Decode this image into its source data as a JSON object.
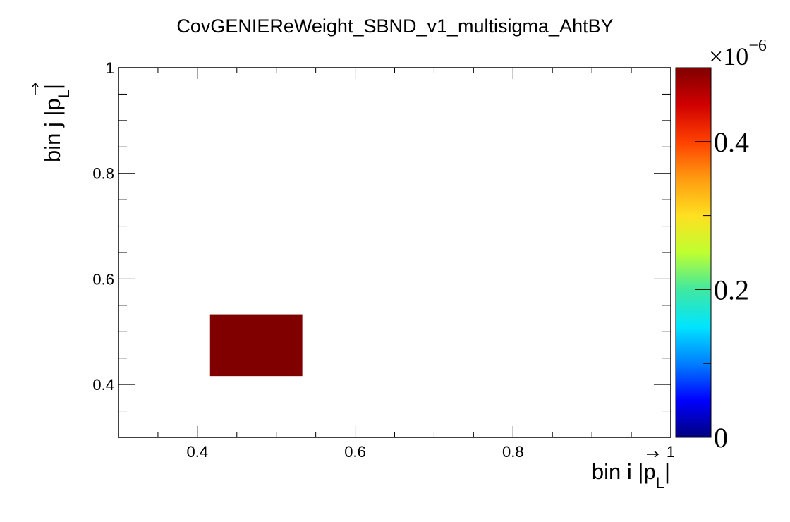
{
  "chart_data": {
    "type": "heatmap",
    "title": "CovGENIEReWeight_SBND_v1_multisigma_AhtBY",
    "xlabel": {
      "prefix": "bin i |",
      "vec": "p",
      "sub": "L",
      "suffix": "|"
    },
    "ylabel": {
      "prefix": "bin j |",
      "vec": "p",
      "sub": "L",
      "suffix": "|"
    },
    "xlim": [
      0.3,
      1.0
    ],
    "ylim": [
      0.3,
      1.0
    ],
    "x_ticks": [
      {
        "value": 0.4,
        "label": "0.4"
      },
      {
        "value": 0.6,
        "label": "0.6"
      },
      {
        "value": 0.8,
        "label": "0.8"
      },
      {
        "value": 1.0,
        "label": "1"
      }
    ],
    "y_ticks": [
      {
        "value": 0.4,
        "label": "0.4"
      },
      {
        "value": 0.6,
        "label": "0.6"
      },
      {
        "value": 0.8,
        "label": "0.8"
      },
      {
        "value": 1.0,
        "label": "1"
      }
    ],
    "x_minor_step": 0.05,
    "y_minor_step": 0.05,
    "cells": [
      {
        "x0": 0.416,
        "x1": 0.533,
        "y0": 0.416,
        "y1": 0.533,
        "value": 5e-07
      }
    ],
    "colorbar": {
      "zlim": [
        0,
        5e-07
      ],
      "exponent_label": {
        "base": "×10",
        "power": "−6"
      },
      "ticks": [
        {
          "value": 0,
          "label": "0"
        },
        {
          "value": 2e-07,
          "label": "0.2"
        },
        {
          "value": 4e-07,
          "label": "0.4"
        }
      ],
      "minor_step": 1e-07,
      "palette": [
        "#00007f",
        "#0000ff",
        "#007fff",
        "#00e5ff",
        "#40e8a0",
        "#bfff30",
        "#ffe020",
        "#ff9b10",
        "#ff4000",
        "#d00000",
        "#800000"
      ]
    },
    "cell_color": "#800000",
    "grid": false,
    "legend": "none"
  }
}
